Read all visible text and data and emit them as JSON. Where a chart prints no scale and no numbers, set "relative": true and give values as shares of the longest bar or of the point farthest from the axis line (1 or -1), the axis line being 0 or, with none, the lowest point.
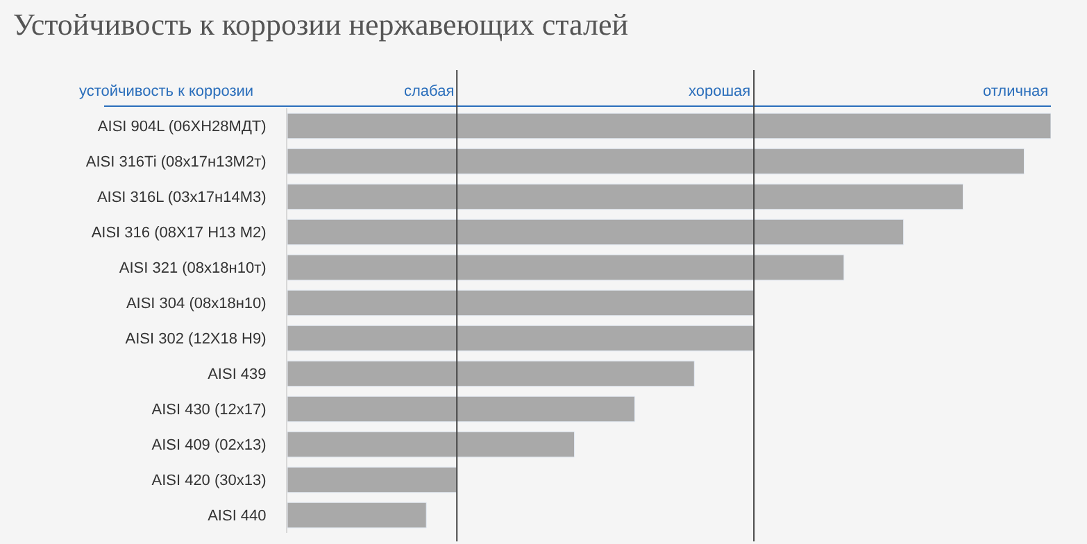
{
  "chart_data": {
    "type": "bar",
    "orientation": "horizontal",
    "relative": true,
    "title": "Устойчивость к коррозии нержавеющих сталей",
    "ylabel": "устойчивость к коррозии",
    "categories": [
      "AISI 904L (06ХН28МДТ)",
      "AISI 316Ti (08х17н13М2т)",
      "AISI 316L (03х17н14М3)",
      "AISI 316 (08Х17 Н13 М2)",
      "AISI 321 (08х18н10т)",
      "AISI 304 (08х18н10)",
      "AISI 302 (12Х18 Н9)",
      "AISI 439",
      "AISI 430 (12х17)",
      "AISI 409 (02х13)",
      "AISI 420 (30х13)",
      "AISI 440"
    ],
    "values": [
      1,
      0.965,
      0.885,
      0.807,
      0.729,
      0.611,
      0.611,
      0.533,
      0.455,
      0.376,
      0.222,
      0.182
    ],
    "color": "#a9a9a9",
    "ref_lines": [
      {
        "axis": "x",
        "value": 0.222,
        "label": "слабая",
        "color": "#444444"
      },
      {
        "axis": "x",
        "value": 0.611,
        "label": "хорошая",
        "color": "#444444"
      }
    ],
    "annotations": [
      "отличная"
    ],
    "grid": false,
    "legend": false
  }
}
